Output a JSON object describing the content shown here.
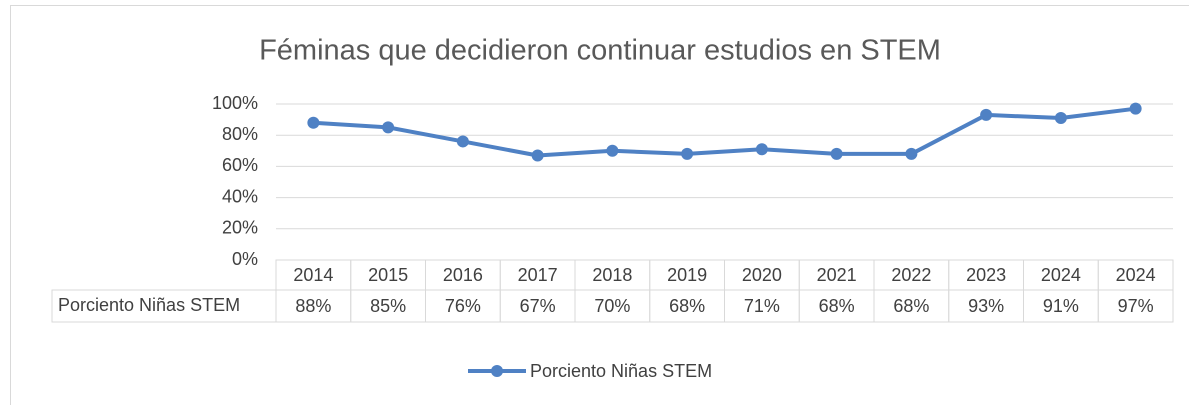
{
  "chart_data": {
    "type": "line",
    "title": "Féminas que decidieron continuar estudios en STEM",
    "categories": [
      "2014",
      "2015",
      "2016",
      "2017",
      "2018",
      "2019",
      "2020",
      "2021",
      "2022",
      "2023",
      "2024",
      "2024"
    ],
    "series": [
      {
        "name": "Porciento Niñas STEM",
        "color": "#4f81c4",
        "values": [
          88,
          85,
          76,
          67,
          70,
          68,
          71,
          68,
          68,
          93,
          91,
          97
        ],
        "value_labels": [
          "88%",
          "85%",
          "76%",
          "67%",
          "70%",
          "68%",
          "71%",
          "68%",
          "68%",
          "93%",
          "91%",
          "97%"
        ]
      }
    ],
    "ylim": [
      0,
      100
    ],
    "yticks": [
      {
        "value": 0,
        "label": "0%"
      },
      {
        "value": 20,
        "label": "20%"
      },
      {
        "value": 40,
        "label": "40%"
      },
      {
        "value": 60,
        "label": "60%"
      },
      {
        "value": 80,
        "label": "80%"
      },
      {
        "value": 100,
        "label": "100%"
      }
    ],
    "grid": true,
    "legend": "bottom"
  }
}
